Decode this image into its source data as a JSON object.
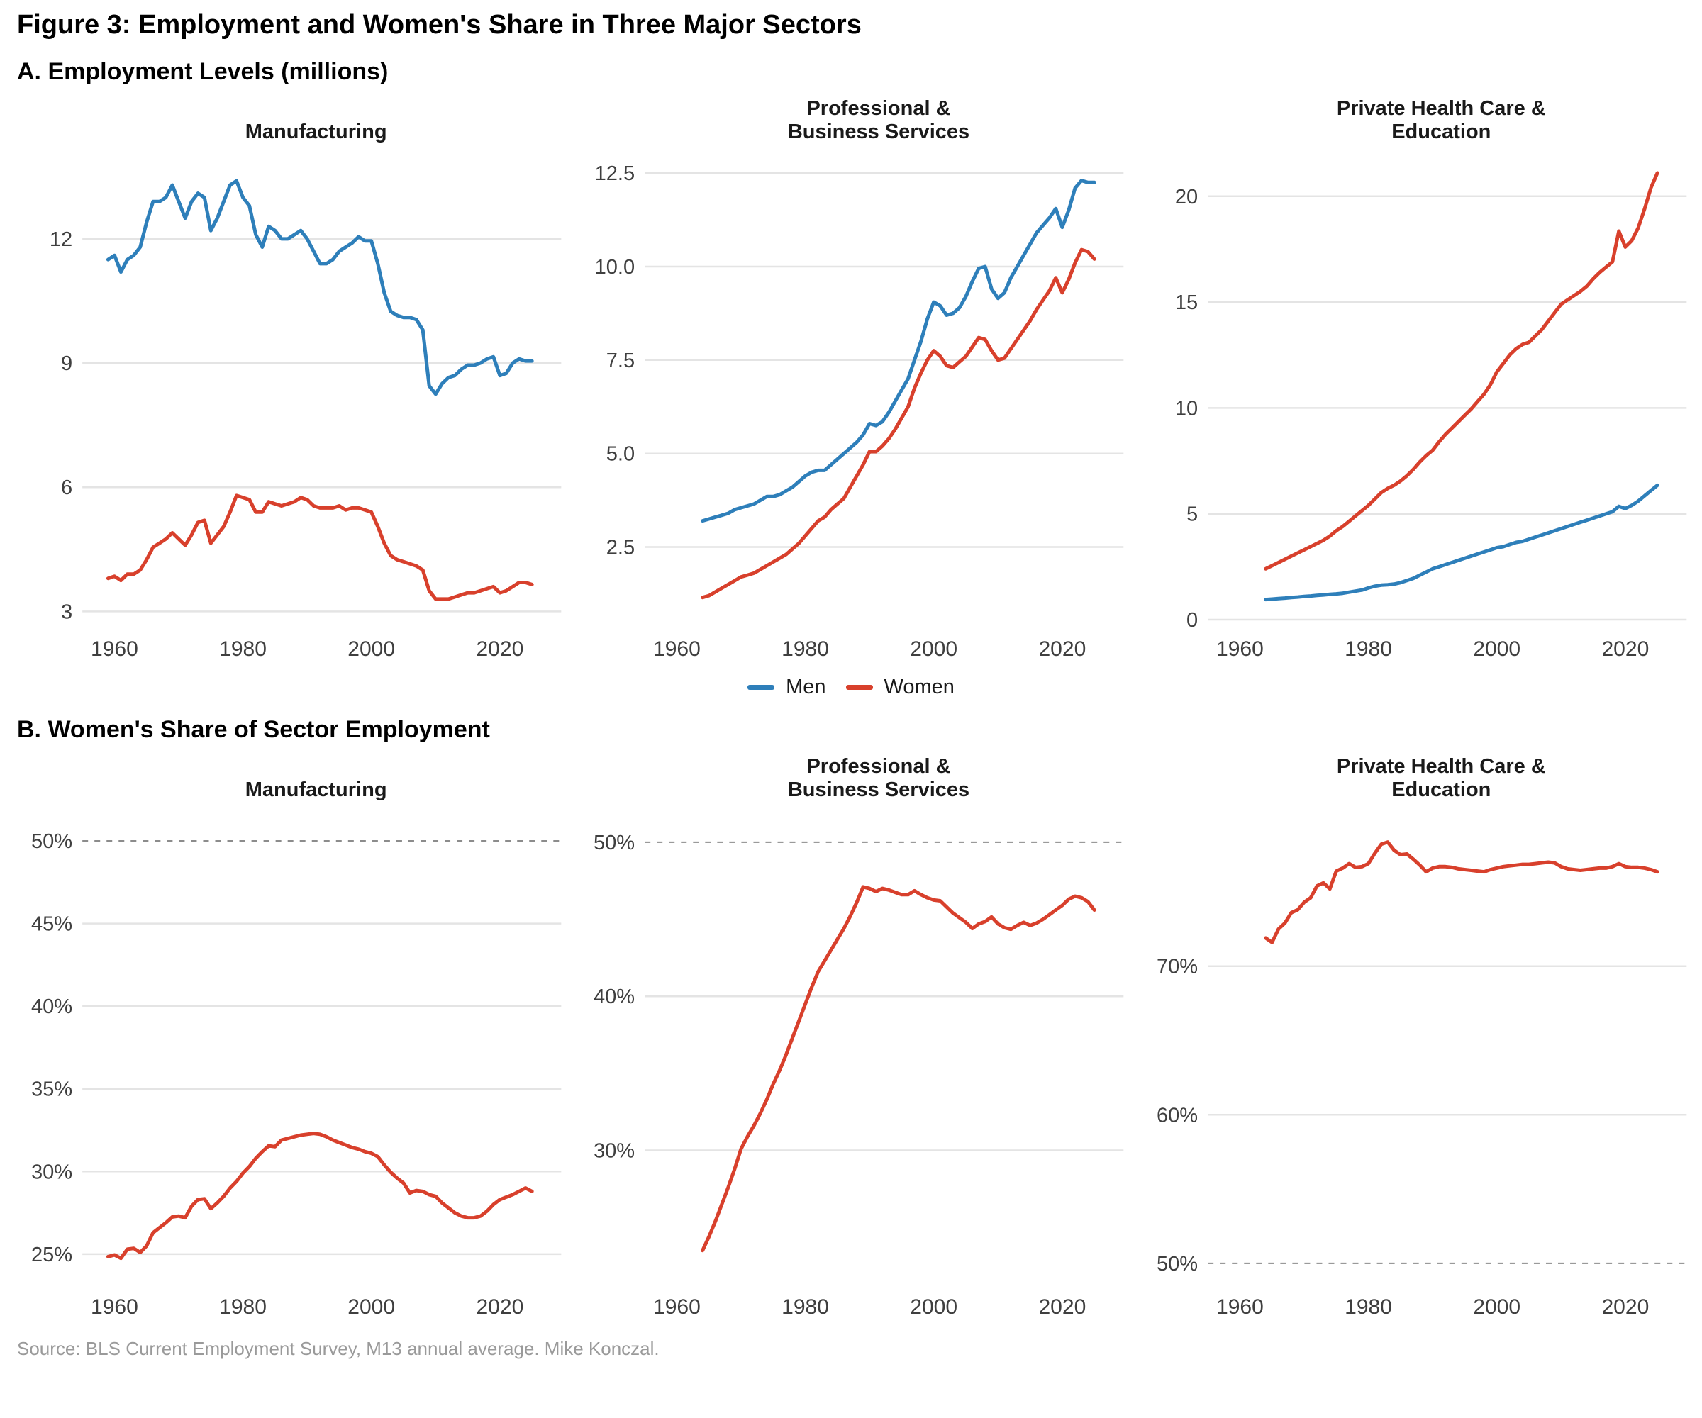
{
  "page": {
    "title": "Figure 3: Employment and Women's Share in Three Major Sectors",
    "section_a": "A. Employment Levels (millions)",
    "section_b": "B. Women's Share of Sector Employment",
    "source": "Source: BLS Current Employment Survey, M13 annual average. Mike Konczal."
  },
  "legend": {
    "men": "Men",
    "women": "Women"
  },
  "colors": {
    "men": "#2e7fba",
    "women": "#d8402c",
    "grid": "#e4e4e4",
    "dashed_grid": "#8c8c8c",
    "tick_text": "#3f3f3f"
  },
  "chart_data": [
    {
      "type": "line",
      "panel": "A",
      "title": "Manufacturing",
      "x_range": [
        1955,
        2028
      ],
      "xticks": [
        1960,
        1980,
        2000,
        2020
      ],
      "ylim": [
        2.75,
        13.95
      ],
      "yticks": [
        {
          "v": 3,
          "label": "3"
        },
        {
          "v": 6,
          "label": "6"
        },
        {
          "v": 9,
          "label": "9"
        },
        {
          "v": 12,
          "label": "12"
        }
      ],
      "series": [
        {
          "name": "Men",
          "color": "men",
          "start_year": 1959,
          "values": [
            11.5,
            11.6,
            11.2,
            11.5,
            11.6,
            11.8,
            12.4,
            12.9,
            12.9,
            13.0,
            13.3,
            12.9,
            12.5,
            12.9,
            13.1,
            13.0,
            12.2,
            12.5,
            12.9,
            13.3,
            13.4,
            13.0,
            12.8,
            12.1,
            11.8,
            12.3,
            12.2,
            12.0,
            12.0,
            12.1,
            12.2,
            12.0,
            11.7,
            11.4,
            11.4,
            11.5,
            11.7,
            11.8,
            11.9,
            12.05,
            11.95,
            11.95,
            11.4,
            10.7,
            10.25,
            10.15,
            10.1,
            10.1,
            10.05,
            9.8,
            8.45,
            8.25,
            8.5,
            8.65,
            8.7,
            8.85,
            8.95,
            8.95,
            9.0,
            9.1,
            9.15,
            8.7,
            8.75,
            9.0,
            9.1,
            9.05,
            9.05
          ]
        },
        {
          "name": "Women",
          "color": "women",
          "start_year": 1959,
          "values": [
            3.8,
            3.85,
            3.75,
            3.9,
            3.9,
            4.0,
            4.25,
            4.55,
            4.65,
            4.75,
            4.9,
            4.75,
            4.6,
            4.85,
            5.15,
            5.2,
            4.65,
            4.85,
            5.05,
            5.4,
            5.8,
            5.75,
            5.7,
            5.4,
            5.4,
            5.65,
            5.6,
            5.55,
            5.6,
            5.65,
            5.75,
            5.7,
            5.55,
            5.5,
            5.5,
            5.5,
            5.55,
            5.45,
            5.5,
            5.5,
            5.45,
            5.4,
            5.05,
            4.65,
            4.35,
            4.25,
            4.2,
            4.15,
            4.1,
            4.0,
            3.5,
            3.3,
            3.3,
            3.3,
            3.35,
            3.4,
            3.45,
            3.45,
            3.5,
            3.55,
            3.6,
            3.45,
            3.5,
            3.6,
            3.7,
            3.7,
            3.65
          ]
        }
      ]
    },
    {
      "type": "line",
      "panel": "A",
      "title": "Professional &\nBusiness Services",
      "x_range": [
        1955,
        2028
      ],
      "xticks": [
        1960,
        1980,
        2000,
        2020
      ],
      "ylim": [
        0.5,
        12.9
      ],
      "yticks": [
        {
          "v": 2.5,
          "label": "2.5"
        },
        {
          "v": 5,
          "label": "5.0"
        },
        {
          "v": 7.5,
          "label": "7.5"
        },
        {
          "v": 10,
          "label": "10.0"
        },
        {
          "v": 12.5,
          "label": "12.5"
        }
      ],
      "series": [
        {
          "name": "Men",
          "color": "men",
          "start_year": 1964,
          "values": [
            3.2,
            3.25,
            3.3,
            3.35,
            3.4,
            3.5,
            3.55,
            3.6,
            3.65,
            3.75,
            3.85,
            3.85,
            3.9,
            4.0,
            4.1,
            4.25,
            4.4,
            4.5,
            4.55,
            4.55,
            4.7,
            4.85,
            5.0,
            5.15,
            5.3,
            5.5,
            5.8,
            5.75,
            5.85,
            6.1,
            6.4,
            6.7,
            7.0,
            7.5,
            8.0,
            8.6,
            9.05,
            8.95,
            8.7,
            8.75,
            8.9,
            9.2,
            9.6,
            9.95,
            10.0,
            9.4,
            9.15,
            9.3,
            9.7,
            10.0,
            10.3,
            10.6,
            10.9,
            11.1,
            11.3,
            11.55,
            11.05,
            11.5,
            12.1,
            12.3,
            12.25,
            12.25
          ]
        },
        {
          "name": "Women",
          "color": "women",
          "start_year": 1964,
          "values": [
            1.15,
            1.2,
            1.3,
            1.4,
            1.5,
            1.6,
            1.7,
            1.75,
            1.8,
            1.9,
            2.0,
            2.1,
            2.2,
            2.3,
            2.45,
            2.6,
            2.8,
            3.0,
            3.2,
            3.3,
            3.5,
            3.65,
            3.8,
            4.1,
            4.4,
            4.7,
            5.05,
            5.05,
            5.2,
            5.4,
            5.65,
            5.95,
            6.25,
            6.75,
            7.15,
            7.5,
            7.75,
            7.6,
            7.35,
            7.3,
            7.45,
            7.6,
            7.85,
            8.1,
            8.05,
            7.75,
            7.5,
            7.55,
            7.8,
            8.05,
            8.3,
            8.55,
            8.85,
            9.1,
            9.35,
            9.7,
            9.3,
            9.65,
            10.1,
            10.45,
            10.4,
            10.2
          ]
        }
      ]
    },
    {
      "type": "line",
      "panel": "A",
      "title": "Private Health Care &\nEducation",
      "x_range": [
        1955,
        2028
      ],
      "xticks": [
        1960,
        1980,
        2000,
        2020
      ],
      "ylim": [
        -0.1,
        21.8
      ],
      "yticks": [
        {
          "v": 0,
          "label": "0"
        },
        {
          "v": 5,
          "label": "5"
        },
        {
          "v": 10,
          "label": "10"
        },
        {
          "v": 15,
          "label": "15"
        },
        {
          "v": 20,
          "label": "20"
        }
      ],
      "series": [
        {
          "name": "Men",
          "color": "men",
          "start_year": 1964,
          "values": [
            0.95,
            0.97,
            1.0,
            1.02,
            1.05,
            1.07,
            1.1,
            1.12,
            1.15,
            1.17,
            1.2,
            1.22,
            1.25,
            1.3,
            1.35,
            1.4,
            1.5,
            1.58,
            1.63,
            1.65,
            1.68,
            1.75,
            1.85,
            1.95,
            2.1,
            2.25,
            2.4,
            2.5,
            2.6,
            2.7,
            2.8,
            2.9,
            3.0,
            3.1,
            3.2,
            3.3,
            3.4,
            3.45,
            3.55,
            3.65,
            3.7,
            3.8,
            3.9,
            4.0,
            4.1,
            4.2,
            4.3,
            4.4,
            4.5,
            4.6,
            4.7,
            4.8,
            4.9,
            5.0,
            5.1,
            5.35,
            5.25,
            5.4,
            5.6,
            5.85,
            6.1,
            6.35
          ]
        },
        {
          "name": "Women",
          "color": "women",
          "start_year": 1964,
          "values": [
            2.4,
            2.55,
            2.7,
            2.85,
            3.0,
            3.15,
            3.3,
            3.45,
            3.6,
            3.75,
            3.95,
            4.2,
            4.4,
            4.65,
            4.9,
            5.15,
            5.4,
            5.7,
            6.0,
            6.2,
            6.35,
            6.55,
            6.8,
            7.1,
            7.45,
            7.75,
            8.0,
            8.4,
            8.75,
            9.05,
            9.35,
            9.65,
            9.95,
            10.3,
            10.65,
            11.1,
            11.7,
            12.1,
            12.5,
            12.8,
            13.0,
            13.1,
            13.4,
            13.7,
            14.1,
            14.5,
            14.9,
            15.1,
            15.3,
            15.5,
            15.75,
            16.1,
            16.4,
            16.65,
            16.9,
            18.35,
            17.6,
            17.9,
            18.5,
            19.4,
            20.4,
            21.1
          ]
        }
      ]
    },
    {
      "type": "line",
      "panel": "B",
      "title": "Manufacturing",
      "x_range": [
        1955,
        2028
      ],
      "xticks": [
        1960,
        1980,
        2000,
        2020
      ],
      "ylim": [
        23.45,
        51.5
      ],
      "yticks": [
        {
          "v": 25,
          "label": "25%"
        },
        {
          "v": 30,
          "label": "30%"
        },
        {
          "v": 35,
          "label": "35%"
        },
        {
          "v": 40,
          "label": "40%"
        },
        {
          "v": 45,
          "label": "45%"
        },
        {
          "v": 50,
          "label": "50%",
          "dashed": true
        }
      ],
      "series": [
        {
          "name": "Women",
          "color": "women",
          "start_year": 1959,
          "values": [
            24.85,
            24.95,
            24.75,
            25.3,
            25.35,
            25.1,
            25.5,
            26.3,
            26.6,
            26.9,
            27.25,
            27.3,
            27.2,
            27.9,
            28.3,
            28.35,
            27.75,
            28.1,
            28.5,
            29.0,
            29.4,
            29.9,
            30.3,
            30.8,
            31.2,
            31.55,
            31.5,
            31.9,
            32.0,
            32.1,
            32.2,
            32.25,
            32.3,
            32.25,
            32.1,
            31.9,
            31.75,
            31.6,
            31.45,
            31.35,
            31.2,
            31.1,
            30.9,
            30.4,
            29.95,
            29.6,
            29.3,
            28.7,
            28.85,
            28.8,
            28.6,
            28.5,
            28.1,
            27.8,
            27.5,
            27.3,
            27.2,
            27.2,
            27.3,
            27.6,
            28.0,
            28.3,
            28.45,
            28.6,
            28.8,
            29.0,
            28.8
          ]
        }
      ]
    },
    {
      "type": "line",
      "panel": "B",
      "title": "Professional &\nBusiness Services",
      "x_range": [
        1955,
        2028
      ],
      "xticks": [
        1960,
        1980,
        2000,
        2020
      ],
      "ylim": [
        21.6,
        51.7
      ],
      "yticks": [
        {
          "v": 30,
          "label": "30%"
        },
        {
          "v": 40,
          "label": "40%"
        },
        {
          "v": 50,
          "label": "50%",
          "dashed": true
        }
      ],
      "series": [
        {
          "name": "Women",
          "color": "women",
          "start_year": 1964,
          "values": [
            23.5,
            24.4,
            25.4,
            26.5,
            27.6,
            28.8,
            30.1,
            30.9,
            31.6,
            32.4,
            33.3,
            34.3,
            35.2,
            36.2,
            37.3,
            38.4,
            39.5,
            40.6,
            41.6,
            42.3,
            43.0,
            43.7,
            44.4,
            45.2,
            46.1,
            47.1,
            47.0,
            46.8,
            47.0,
            46.9,
            46.75,
            46.6,
            46.6,
            46.85,
            46.6,
            46.4,
            46.25,
            46.2,
            45.8,
            45.4,
            45.1,
            44.8,
            44.4,
            44.7,
            44.85,
            45.15,
            44.7,
            44.45,
            44.35,
            44.6,
            44.8,
            44.6,
            44.75,
            45.0,
            45.3,
            45.6,
            45.9,
            46.3,
            46.5,
            46.4,
            46.15,
            45.6
          ]
        }
      ]
    },
    {
      "type": "line",
      "panel": "B",
      "title": "Private Health Care &\nEducation",
      "x_range": [
        1955,
        2028
      ],
      "xticks": [
        1960,
        1980,
        2000,
        2020
      ],
      "ylim": [
        48.9,
        80.1
      ],
      "yticks": [
        {
          "v": 50,
          "label": "50%",
          "dashed": true
        },
        {
          "v": 60,
          "label": "60%"
        },
        {
          "v": 70,
          "label": "70%"
        }
      ],
      "series": [
        {
          "name": "Women",
          "color": "women",
          "start_year": 1964,
          "values": [
            71.9,
            71.6,
            72.5,
            72.9,
            73.6,
            73.8,
            74.3,
            74.6,
            75.4,
            75.6,
            75.2,
            76.4,
            76.6,
            76.9,
            76.65,
            76.7,
            76.9,
            77.6,
            78.2,
            78.35,
            77.8,
            77.5,
            77.55,
            77.2,
            76.8,
            76.35,
            76.6,
            76.7,
            76.7,
            76.65,
            76.55,
            76.5,
            76.45,
            76.4,
            76.35,
            76.5,
            76.6,
            76.7,
            76.75,
            76.8,
            76.85,
            76.85,
            76.9,
            76.95,
            77.0,
            76.95,
            76.7,
            76.55,
            76.5,
            76.45,
            76.5,
            76.55,
            76.6,
            76.6,
            76.7,
            76.9,
            76.7,
            76.65,
            76.65,
            76.6,
            76.5,
            76.35
          ]
        }
      ]
    }
  ]
}
